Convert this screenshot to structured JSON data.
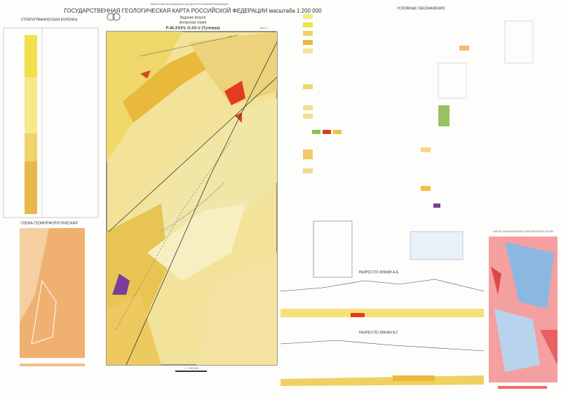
{
  "header": {
    "top_note": "Министерство природных ресурсов Российской Федерации",
    "title": "ГОСУДАРСТВЕННАЯ ГЕОЛОГИЧЕСКАЯ КАРТА РОССИЙСКОЙ ФЕДЕРАЦИИ масштаба 1:200 000",
    "edition": "Издание второе",
    "series": "Ангарская серия",
    "sheet": "P-45-XXXV, O-XX-V (Тулевая)",
    "sheet_no": "Лист 1"
  },
  "left": {
    "column_title": "СТРАТИГРАФИЧЕСКАЯ КОЛОНКА",
    "scheme_title": "СХЕМА ГЕОМОРФОЛОГИЧЕСКАЯ"
  },
  "legend": {
    "title": "УСЛОВНЫЕ ОБОЗНАЧЕНИЯ"
  },
  "sections": {
    "first": "РАЗРЕЗ ПО ЛИНИИ А-Б",
    "second": "РАЗРЕЗ ПО ЛИНИИ В-Г"
  },
  "right_map": {
    "title": "КАРТА АНОМАЛЬНОГО МАГНИТНОГО ПОЛЯ"
  },
  "scale": "1 : 200 000"
}
